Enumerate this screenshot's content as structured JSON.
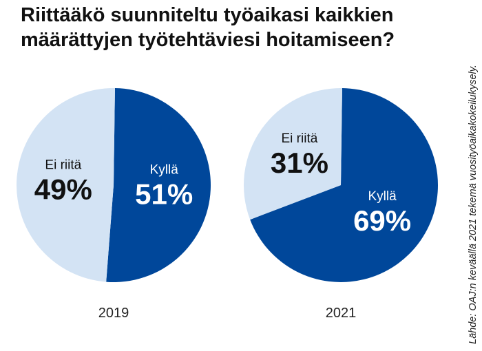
{
  "title_lines": [
    "Riittääkö suunniteltu työaikasi kaikkien",
    "määrättyjen työtehtäviesi hoitamiseen?"
  ],
  "source": "Lähde: OAJ:n keväällä 2021 tekemä vuosityöaikakokeilukysely.",
  "colors": {
    "kylla": "#00479a",
    "ei_riita": "#d3e3f4",
    "label_dark": "#111111",
    "label_light": "#ffffff"
  },
  "chart_data": [
    {
      "type": "pie",
      "year": "2019",
      "slices": [
        {
          "label": "Kyllä",
          "value": 51,
          "display": "51%",
          "color": "#00479a"
        },
        {
          "label": "Ei riitä",
          "value": 49,
          "display": "49%",
          "color": "#d3e3f4"
        }
      ]
    },
    {
      "type": "pie",
      "year": "2021",
      "slices": [
        {
          "label": "Kyllä",
          "value": 69,
          "display": "69%",
          "color": "#00479a"
        },
        {
          "label": "Ei riitä",
          "value": 31,
          "display": "31%",
          "color": "#d3e3f4"
        }
      ]
    }
  ]
}
